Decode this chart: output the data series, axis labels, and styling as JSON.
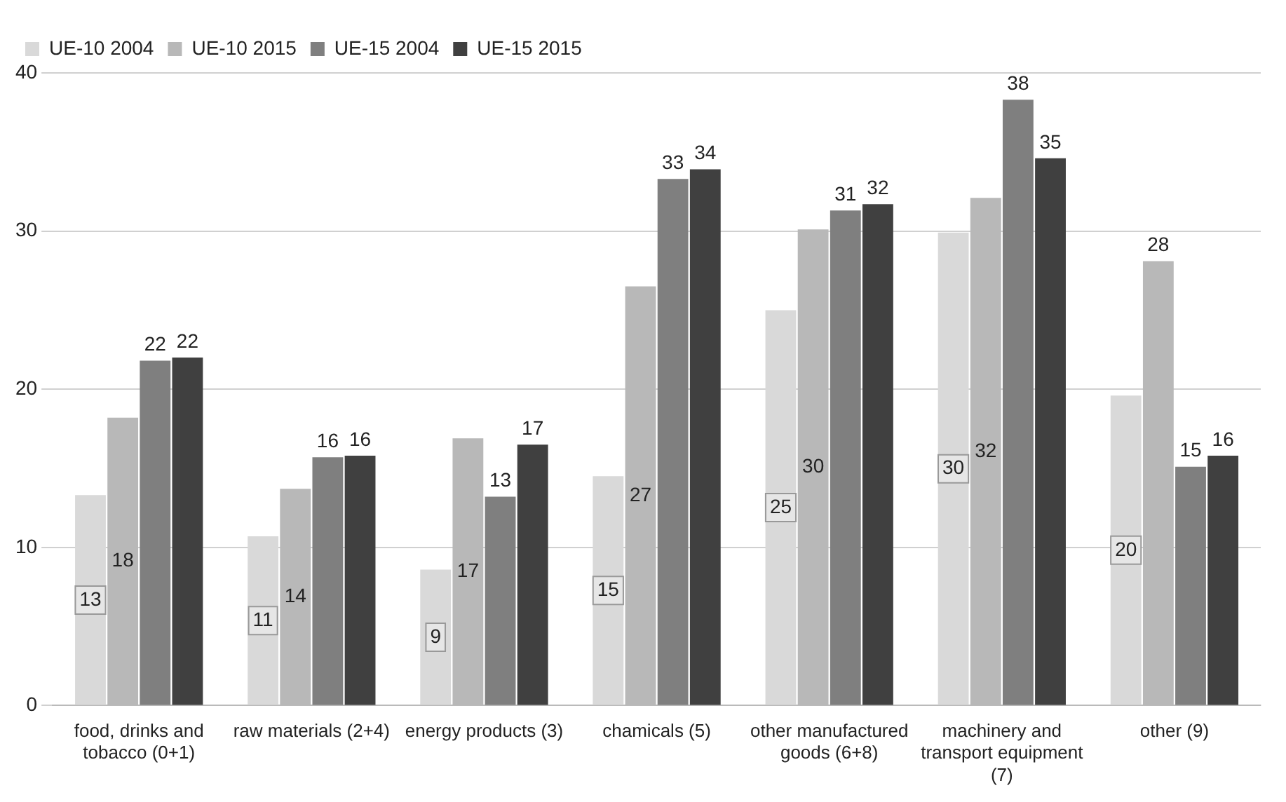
{
  "chart_data": {
    "type": "bar",
    "categories": [
      "food, drinks and tobacco (0+1)",
      "raw materials (2+4)",
      "energy products (3)",
      "chamicals (5)",
      "other manufactured goods (6+8)",
      "machinery and transport equipment (7)",
      "other (9)"
    ],
    "series": [
      {
        "name": "UE-10 2004",
        "color": "#d9d9d9",
        "values": [
          13.3,
          10.7,
          8.6,
          14.5,
          25.0,
          29.9,
          19.6
        ],
        "value_labels": [
          "13",
          "11",
          "9",
          "15",
          "25",
          "30",
          "20"
        ]
      },
      {
        "name": "UE-10 2015",
        "color": "#b8b8b8",
        "values": [
          18.2,
          13.7,
          16.9,
          26.5,
          30.1,
          32.1,
          28.1
        ],
        "value_labels": [
          "18",
          "14",
          "17",
          "27",
          "30",
          "32",
          "28"
        ]
      },
      {
        "name": "UE-15 2004",
        "color": "#7f7f7f",
        "values": [
          21.8,
          15.7,
          13.2,
          33.3,
          31.3,
          38.3,
          15.1
        ],
        "value_labels": [
          "22",
          "16",
          "13",
          "33",
          "31",
          "38",
          "15"
        ]
      },
      {
        "name": "UE-15 2015",
        "color": "#404040",
        "values": [
          22.0,
          15.8,
          16.5,
          33.9,
          31.7,
          34.6,
          15.8
        ],
        "value_labels": [
          "22",
          "16",
          "17",
          "34",
          "32",
          "35",
          "16"
        ]
      }
    ],
    "ylim": [
      0,
      40
    ],
    "yticks": [
      0,
      10,
      20,
      30,
      40
    ],
    "grid": "y",
    "legend": "top left"
  }
}
